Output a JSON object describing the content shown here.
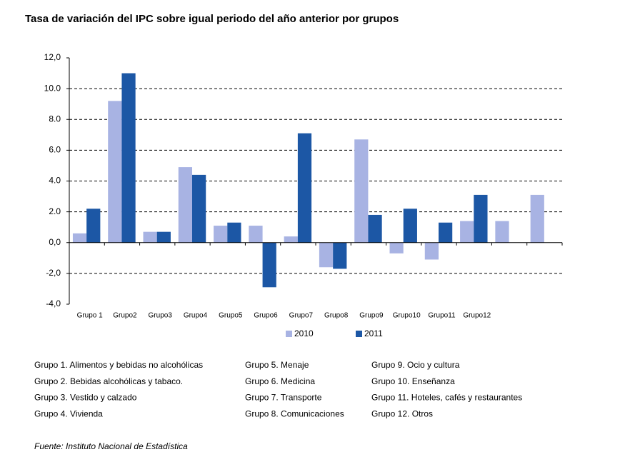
{
  "chart_data": {
    "type": "bar",
    "title": "Tasa de variación del IPC sobre igual periodo del año anterior por grupos",
    "categories": [
      "Grupo 1",
      "Grupo2",
      "Grupo3",
      "Grupo4",
      "Grupo5",
      "Grupo6",
      "Grupo7",
      "Grupo8",
      "Grupo9",
      "Grupo10",
      "Grupo11",
      "Grupo12",
      null,
      null
    ],
    "series": [
      {
        "name": "2010",
        "color": "#a8b3e3",
        "values": [
          0.6,
          9.2,
          0.7,
          4.9,
          1.1,
          1.1,
          0.4,
          -1.6,
          6.7,
          -0.7,
          -1.1,
          1.4,
          1.4,
          3.1
        ]
      },
      {
        "name": "2011",
        "color": "#1c57a5",
        "values": [
          2.2,
          11.0,
          0.7,
          4.4,
          1.3,
          -2.9,
          7.1,
          -1.7,
          1.8,
          2.2,
          1.3,
          3.1,
          null,
          null
        ]
      }
    ],
    "ylim": [
      -4,
      12
    ],
    "yticks": [
      {
        "value": -4,
        "label": "-4,0"
      },
      {
        "value": -2,
        "label": "-2,0"
      },
      {
        "value": 0,
        "label": "0,0"
      },
      {
        "value": 2,
        "label": "2.0"
      },
      {
        "value": 4,
        "label": "4.0"
      },
      {
        "value": 6,
        "label": "6.0"
      },
      {
        "value": 8,
        "label": "8.0"
      },
      {
        "value": 10,
        "label": "10.0"
      },
      {
        "value": 12,
        "label": "12,0"
      }
    ],
    "grid": true,
    "legend": "bottom",
    "notes": [
      "Grupo 1. Alimentos y bebidas no alcohólicas",
      "Grupo 2. Bebidas alcohólicas y  tabaco.",
      "Grupo 3. Vestido y calzado",
      "Grupo 4. Vivienda",
      "Grupo 5. Menaje",
      "Grupo 6. Medicina",
      "Grupo 7. Transporte",
      "Grupo 8. Comunicaciones",
      "Grupo 9. Ocio y cultura",
      "Grupo 10. Enseñanza",
      "Grupo 11. Hoteles, cafés y restaurantes",
      "Grupo 12. Otros"
    ],
    "source": "Fuente: Instituto Nacional de Estadística"
  }
}
